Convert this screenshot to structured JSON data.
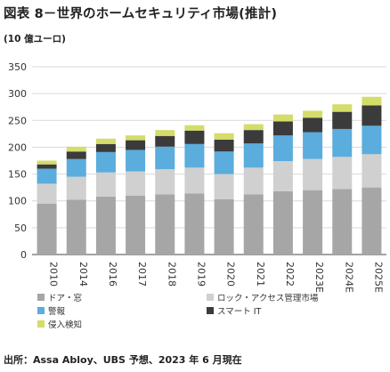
{
  "header": {
    "title": "図表 8－世界のホームセキュリティ市場(推計)",
    "unit": "(10 億ユーロ)"
  },
  "footer": {
    "source": "出所：Assa Abloy、UBS 予想、2023 年 6 月現在"
  },
  "chart_data": {
    "type": "bar",
    "stacked": true,
    "categories": [
      "2010",
      "2014",
      "2016",
      "2017",
      "2018",
      "2019",
      "2020",
      "2021",
      "2022",
      "2023E",
      "2024E",
      "2025E"
    ],
    "ylim": [
      0,
      350
    ],
    "yticks": [
      0,
      50,
      100,
      150,
      200,
      250,
      300,
      350
    ],
    "grid": true,
    "legend_position": "bottom",
    "series": [
      {
        "name": "ドア・窓",
        "color": "#a6a6a6",
        "values": [
          95,
          102,
          108,
          110,
          112,
          114,
          103,
          112,
          118,
          120,
          122,
          125
        ]
      },
      {
        "name": "ロック・アクセス管理市場",
        "color": "#d0d0d0",
        "values": [
          37,
          43,
          45,
          45,
          47,
          48,
          47,
          50,
          56,
          58,
          60,
          62
        ]
      },
      {
        "name": "警報",
        "color": "#5aaddc",
        "values": [
          28,
          33,
          38,
          40,
          42,
          44,
          42,
          45,
          48,
          50,
          52,
          53
        ]
      },
      {
        "name": "スマート IT",
        "color": "#3b3b3b",
        "values": [
          8,
          14,
          15,
          18,
          20,
          25,
          22,
          25,
          26,
          27,
          32,
          38
        ]
      },
      {
        "name": "侵入検知",
        "color": "#d4dc6a",
        "values": [
          7,
          9,
          10,
          9,
          11,
          10,
          12,
          11,
          13,
          13,
          14,
          16
        ]
      }
    ]
  }
}
